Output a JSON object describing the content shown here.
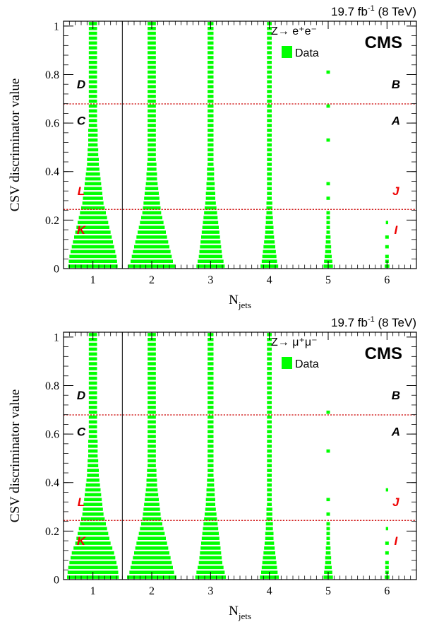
{
  "figure": {
    "lumi_prefix": "19.7 fb",
    "lumi_sup": "-1",
    "lumi_suffix": " (8 TeV)",
    "experiment": "CMS",
    "xlabel_main": "N",
    "xlabel_sub": "jets",
    "ylabel": "CSV discriminator value"
  },
  "colors": {
    "data": "#00ff00",
    "cut_line": "#cc0000",
    "region_black": "#000000",
    "region_red": "#ee0000"
  },
  "chart_data": [
    {
      "type": "heatmap",
      "legend_title": "Z→ e⁺e⁻",
      "legend_entries": [
        "Data"
      ],
      "x_ticks": [
        "1",
        "2",
        "3",
        "4",
        "5",
        "6"
      ],
      "y_ticks": [
        "0",
        "0.2",
        "0.4",
        "0.6",
        "0.8",
        "1"
      ],
      "xlim": [
        0.5,
        6.5
      ],
      "ylim": [
        0,
        1.02
      ],
      "bin_width_y": 0.02,
      "csv_cut_tight": 0.679,
      "csv_cut_loose": 0.244,
      "njets_cut": 1.5,
      "regions": [
        {
          "label": "D",
          "x": 0.8,
          "y": 0.76
        },
        {
          "label": "B",
          "x": 6.15,
          "y": 0.76
        },
        {
          "label": "C",
          "x": 0.8,
          "y": 0.61
        },
        {
          "label": "A",
          "x": 6.15,
          "y": 0.61
        },
        {
          "label": "L",
          "x": 0.8,
          "y": 0.32
        },
        {
          "label": "J",
          "x": 6.15,
          "y": 0.32
        },
        {
          "label": "K",
          "x": 0.8,
          "y": 0.16
        },
        {
          "label": "I",
          "x": 6.15,
          "y": 0.16
        }
      ],
      "box_half_width": [
        [
          0.42,
          0.41,
          0.4,
          0.38,
          0.36,
          0.34,
          0.32,
          0.3,
          0.28,
          0.26,
          0.24,
          0.22,
          0.2,
          0.18,
          0.17,
          0.16,
          0.15,
          0.14,
          0.13,
          0.12,
          0.11,
          0.1,
          0.1,
          0.09,
          0.09,
          0.08,
          0.08,
          0.08,
          0.08,
          0.07,
          0.07,
          0.07,
          0.07,
          0.07,
          0.07,
          0.07,
          0.07,
          0.07,
          0.07,
          0.07,
          0.07,
          0.07,
          0.07,
          0.07,
          0.07,
          0.07,
          0.07,
          0.07,
          0.07,
          0.07,
          0.07
        ],
        [
          0.4,
          0.36,
          0.34,
          0.32,
          0.3,
          0.28,
          0.26,
          0.24,
          0.22,
          0.2,
          0.18,
          0.16,
          0.15,
          0.14,
          0.13,
          0.12,
          0.11,
          0.1,
          0.09,
          0.09,
          0.08,
          0.08,
          0.07,
          0.07,
          0.07,
          0.07,
          0.07,
          0.07,
          0.07,
          0.07,
          0.07,
          0.07,
          0.07,
          0.07,
          0.07,
          0.07,
          0.07,
          0.07,
          0.07,
          0.07,
          0.07,
          0.07,
          0.07,
          0.07,
          0.07,
          0.07,
          0.07,
          0.07,
          0.07,
          0.07,
          0.07
        ],
        [
          0.24,
          0.22,
          0.2,
          0.19,
          0.18,
          0.17,
          0.16,
          0.15,
          0.14,
          0.13,
          0.12,
          0.11,
          0.1,
          0.09,
          0.08,
          0.08,
          0.07,
          0.07,
          0.06,
          0.06,
          0.06,
          0.05,
          0.05,
          0.05,
          0.05,
          0.05,
          0.05,
          0.05,
          0.05,
          0.05,
          0.05,
          0.05,
          0.05,
          0.05,
          0.05,
          0.05,
          0.05,
          0.05,
          0.05,
          0.05,
          0.05,
          0.05,
          0.05,
          0.05,
          0.05,
          0.05,
          0.05,
          0.05,
          0.05,
          0.05,
          0.05
        ],
        [
          0.15,
          0.13,
          0.12,
          0.11,
          0.1,
          0.09,
          0.08,
          0.07,
          0.07,
          0.06,
          0.06,
          0.05,
          0.05,
          0.05,
          0.04,
          0.04,
          0.04,
          0.04,
          0.04,
          0.04,
          0.04,
          0.04,
          0.04,
          0.04,
          0.04,
          0.04,
          0.04,
          0.04,
          0.04,
          0.04,
          0.04,
          0.04,
          0.04,
          0.04,
          0.04,
          0.04,
          0.04,
          0.04,
          0.04,
          0.04,
          0.04,
          0.04,
          0.04,
          0.04,
          0.04,
          0.04,
          0.04,
          0.04,
          0.04,
          0.04,
          0.04
        ],
        [
          0.08,
          0.07,
          0.06,
          0.05,
          0.05,
          0.04,
          0.04,
          0.03,
          0.03,
          0.03,
          0.03,
          0.03,
          0,
          0,
          0.03,
          0,
          0,
          0.03,
          0,
          0,
          0,
          0,
          0,
          0,
          0,
          0,
          0.03,
          0,
          0,
          0,
          0,
          0,
          0,
          0.03,
          0,
          0,
          0,
          0,
          0,
          0,
          0.03,
          0,
          0,
          0,
          0,
          0,
          0,
          0,
          0,
          0,
          0
        ],
        [
          0.04,
          0.03,
          0.03,
          0,
          0.03,
          0,
          0.03,
          0,
          0,
          0.02,
          0,
          0,
          0,
          0,
          0,
          0,
          0,
          0,
          0,
          0,
          0,
          0,
          0,
          0,
          0,
          0,
          0,
          0,
          0,
          0,
          0,
          0,
          0,
          0,
          0,
          0,
          0,
          0,
          0,
          0,
          0,
          0,
          0,
          0,
          0,
          0,
          0,
          0,
          0,
          0,
          0
        ]
      ]
    },
    {
      "type": "heatmap",
      "legend_title": "Z→ μ⁺μ⁻",
      "legend_entries": [
        "Data"
      ],
      "x_ticks": [
        "1",
        "2",
        "3",
        "4",
        "5",
        "6"
      ],
      "y_ticks": [
        "0",
        "0.2",
        "0.4",
        "0.6",
        "0.8",
        "1"
      ],
      "xlim": [
        0.5,
        6.5
      ],
      "ylim": [
        0,
        1.02
      ],
      "bin_width_y": 0.02,
      "csv_cut_tight": 0.679,
      "csv_cut_loose": 0.244,
      "njets_cut": 1.5,
      "regions": [
        {
          "label": "D",
          "x": 0.8,
          "y": 0.76
        },
        {
          "label": "B",
          "x": 6.15,
          "y": 0.76
        },
        {
          "label": "C",
          "x": 0.8,
          "y": 0.61
        },
        {
          "label": "A",
          "x": 6.15,
          "y": 0.61
        },
        {
          "label": "L",
          "x": 0.8,
          "y": 0.32
        },
        {
          "label": "J",
          "x": 6.15,
          "y": 0.32
        },
        {
          "label": "K",
          "x": 0.8,
          "y": 0.16
        },
        {
          "label": "I",
          "x": 6.15,
          "y": 0.16
        }
      ],
      "box_half_width": [
        [
          0.44,
          0.43,
          0.42,
          0.4,
          0.38,
          0.36,
          0.33,
          0.3,
          0.28,
          0.26,
          0.24,
          0.22,
          0.2,
          0.18,
          0.17,
          0.16,
          0.15,
          0.14,
          0.13,
          0.12,
          0.11,
          0.1,
          0.1,
          0.09,
          0.09,
          0.08,
          0.08,
          0.08,
          0.08,
          0.07,
          0.07,
          0.07,
          0.07,
          0.07,
          0.07,
          0.07,
          0.07,
          0.07,
          0.07,
          0.07,
          0.07,
          0.07,
          0.07,
          0.07,
          0.07,
          0.07,
          0.07,
          0.07,
          0.07,
          0.07,
          0.07
        ],
        [
          0.42,
          0.38,
          0.36,
          0.34,
          0.32,
          0.3,
          0.28,
          0.26,
          0.24,
          0.22,
          0.2,
          0.18,
          0.16,
          0.15,
          0.14,
          0.13,
          0.12,
          0.11,
          0.1,
          0.09,
          0.09,
          0.08,
          0.08,
          0.07,
          0.07,
          0.07,
          0.07,
          0.07,
          0.07,
          0.07,
          0.07,
          0.07,
          0.07,
          0.07,
          0.07,
          0.07,
          0.07,
          0.07,
          0.07,
          0.07,
          0.07,
          0.07,
          0.07,
          0.07,
          0.07,
          0.07,
          0.07,
          0.07,
          0.07,
          0.07,
          0.07
        ],
        [
          0.26,
          0.24,
          0.22,
          0.2,
          0.19,
          0.18,
          0.17,
          0.16,
          0.15,
          0.14,
          0.13,
          0.12,
          0.11,
          0.1,
          0.09,
          0.08,
          0.08,
          0.07,
          0.07,
          0.06,
          0.06,
          0.05,
          0.05,
          0.05,
          0.05,
          0.05,
          0.05,
          0.05,
          0.05,
          0.05,
          0.05,
          0.05,
          0.05,
          0.05,
          0.05,
          0.05,
          0.05,
          0.05,
          0.05,
          0.05,
          0.05,
          0.05,
          0.05,
          0.05,
          0.05,
          0.05,
          0.05,
          0.05,
          0.05,
          0.05,
          0.05
        ],
        [
          0.16,
          0.14,
          0.13,
          0.12,
          0.11,
          0.1,
          0.09,
          0.08,
          0.07,
          0.07,
          0.06,
          0.06,
          0.05,
          0.05,
          0.05,
          0.04,
          0.04,
          0.04,
          0.04,
          0.04,
          0.04,
          0.04,
          0.04,
          0.04,
          0.04,
          0.04,
          0.04,
          0.04,
          0.04,
          0.04,
          0.04,
          0.04,
          0.04,
          0.04,
          0.04,
          0.04,
          0.04,
          0.04,
          0.04,
          0.04,
          0.04,
          0.04,
          0.04,
          0.04,
          0.04,
          0.04,
          0.04,
          0.04,
          0.04,
          0.04,
          0.04
        ],
        [
          0.08,
          0.07,
          0.06,
          0.05,
          0.05,
          0.04,
          0.04,
          0.03,
          0.03,
          0.03,
          0.03,
          0.03,
          0,
          0.03,
          0,
          0,
          0.03,
          0,
          0,
          0,
          0,
          0,
          0,
          0,
          0,
          0,
          0.03,
          0,
          0,
          0,
          0,
          0,
          0,
          0,
          0.03,
          0,
          0,
          0,
          0,
          0,
          0,
          0,
          0,
          0,
          0,
          0,
          0,
          0,
          0,
          0,
          0
        ],
        [
          0.04,
          0.03,
          0.03,
          0.03,
          0,
          0.03,
          0,
          0.03,
          0,
          0,
          0.02,
          0,
          0,
          0,
          0,
          0,
          0,
          0,
          0.02,
          0,
          0,
          0,
          0,
          0,
          0,
          0,
          0,
          0,
          0,
          0,
          0,
          0,
          0,
          0,
          0,
          0,
          0,
          0,
          0,
          0,
          0,
          0,
          0,
          0,
          0,
          0,
          0,
          0,
          0,
          0,
          0
        ]
      ]
    }
  ]
}
